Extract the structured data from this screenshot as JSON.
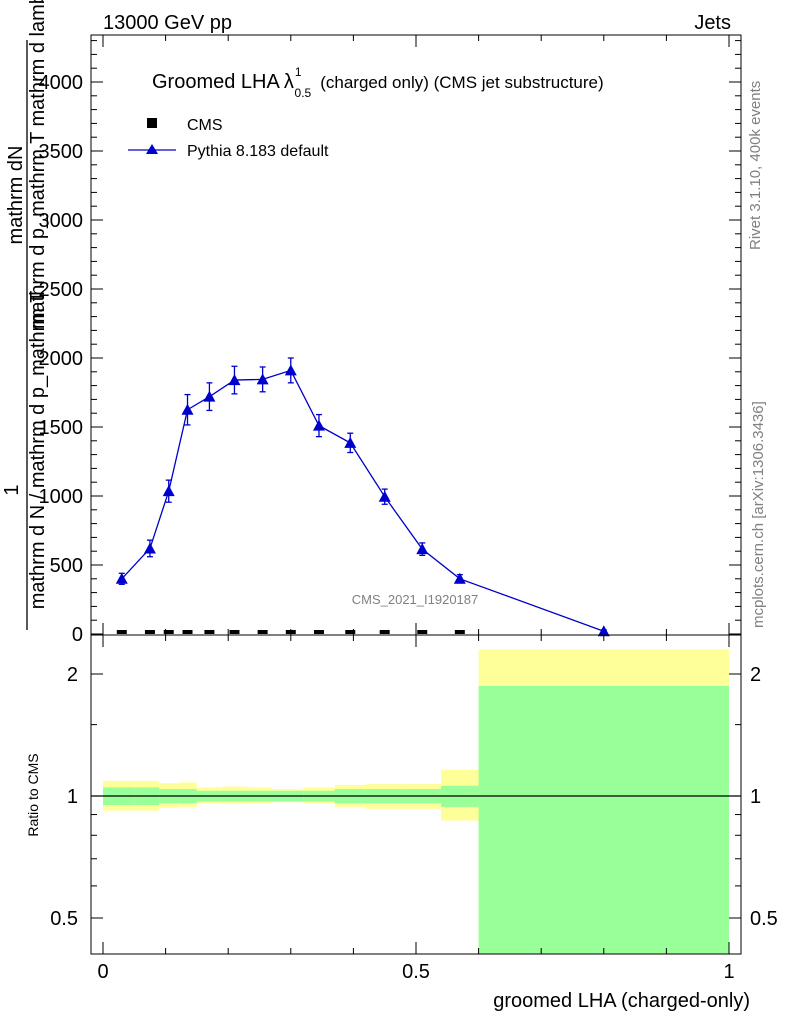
{
  "header": {
    "left": "13000 GeV pp",
    "right": "Jets"
  },
  "side_labels": {
    "rivet": "Rivet 3.1.10,  400k events",
    "mcplots": "mcplots.cern.ch [arXiv:1306.3436]"
  },
  "chart_data": [
    {
      "type": "line",
      "title_main": "Groomed LHA",
      "title_symbol": "λ",
      "title_sup": "1",
      "title_sub": "0.5",
      "title_suffix": "(charged only) (CMS jet substructure)",
      "ylabel_top": "mathrm dN",
      "ylabel_mid": "mathrm d p_mathrm T mathrm d lambda",
      "ylabel_num": "1",
      "ylabel_den": "mathrm d N / mathrm d p_mathrm T",
      "watermark": "CMS_2021_I1920187",
      "xlim": [
        0,
        1
      ],
      "ylim": [
        0,
        4350
      ],
      "yticks": [
        0,
        500,
        1000,
        1500,
        2000,
        2500,
        3000,
        3500,
        4000
      ],
      "ytick_labels": [
        "0",
        "500",
        "1000",
        "1500",
        "2000",
        "2500",
        "3000",
        "3500",
        "4000"
      ],
      "legend": [
        {
          "name": "CMS",
          "marker": "square",
          "color": "#000000"
        },
        {
          "name": "Pythia 8.183 default",
          "marker": "triangle",
          "color": "#0000cc"
        }
      ],
      "series": [
        {
          "name": "Pythia 8.183 default",
          "color": "#0000cc",
          "x": [
            0.03,
            0.075,
            0.105,
            0.135,
            0.17,
            0.21,
            0.255,
            0.3,
            0.345,
            0.395,
            0.45,
            0.51,
            0.57,
            0.8
          ],
          "y": [
            400,
            620,
            1035,
            1625,
            1720,
            1840,
            1845,
            1910,
            1510,
            1385,
            995,
            615,
            400,
            20
          ],
          "err": [
            40,
            60,
            80,
            110,
            100,
            100,
            90,
            90,
            80,
            70,
            55,
            45,
            30,
            10
          ]
        },
        {
          "name": "CMS",
          "color": "#000000",
          "x": [
            0.03,
            0.075,
            0.105,
            0.135,
            0.17,
            0.21,
            0.255,
            0.3,
            0.345,
            0.395,
            0.45,
            0.51,
            0.57
          ],
          "y": [
            0,
            0,
            0,
            0,
            0,
            0,
            0,
            0,
            0,
            0,
            0,
            0,
            0
          ]
        }
      ]
    },
    {
      "type": "area",
      "ylabel": "Ratio to CMS",
      "xlabel": "groomed LHA (charged-only)",
      "yscale": "log",
      "ylim": [
        0.4,
        2.3
      ],
      "yticks": [
        0.5,
        1,
        2
      ],
      "ytick_labels": [
        "0.5",
        "1",
        "2"
      ],
      "xticks": [
        0,
        0.5,
        1
      ],
      "xtick_labels": [
        "0",
        "0.5",
        "1"
      ],
      "bins": [
        0,
        0.05,
        0.09,
        0.12,
        0.15,
        0.19,
        0.23,
        0.27,
        0.32,
        0.37,
        0.42,
        0.48,
        0.54,
        0.6,
        1.0
      ],
      "green_lo": [
        0.95,
        0.95,
        0.96,
        0.96,
        0.97,
        0.97,
        0.97,
        0.97,
        0.97,
        0.96,
        0.96,
        0.96,
        0.94,
        0.4
      ],
      "green_hi": [
        1.05,
        1.05,
        1.04,
        1.04,
        1.03,
        1.03,
        1.03,
        1.03,
        1.03,
        1.04,
        1.04,
        1.04,
        1.06,
        1.87
      ],
      "yellow_lo": [
        0.92,
        0.92,
        0.935,
        0.94,
        0.96,
        0.955,
        0.96,
        0.965,
        0.96,
        0.94,
        0.93,
        0.93,
        0.87,
        0.4
      ],
      "yellow_hi": [
        1.09,
        1.09,
        1.075,
        1.08,
        1.05,
        1.055,
        1.05,
        1.04,
        1.05,
        1.065,
        1.07,
        1.07,
        1.16,
        2.3
      ]
    }
  ]
}
